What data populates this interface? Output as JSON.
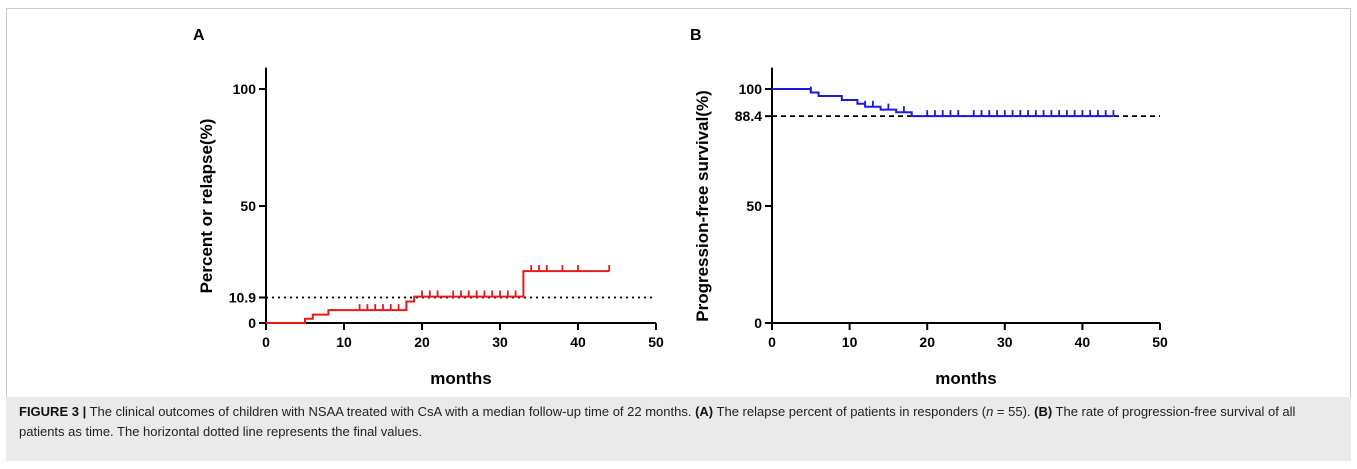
{
  "chart_data": [
    {
      "type": "line",
      "panel_label": "A",
      "xlabel": "months",
      "ylabel": "Percent or relapse(%)",
      "xlim": [
        0,
        50
      ],
      "ylim": [
        0,
        110
      ],
      "x_ticks": [
        0,
        10,
        20,
        30,
        40,
        50
      ],
      "x_tick_labels": [
        "0",
        "10",
        "20",
        "30",
        "40",
        "50"
      ],
      "y_ticks": [
        0,
        10.9,
        50,
        100
      ],
      "y_tick_labels": [
        "0",
        "10.9",
        "50",
        "100"
      ],
      "grid": false,
      "series": [
        {
          "color": "#e8191b",
          "steps": [
            [
              0,
              0
            ],
            [
              5,
              0
            ],
            [
              5,
              1.8
            ],
            [
              6,
              1.8
            ],
            [
              6,
              3.6
            ],
            [
              8,
              3.6
            ],
            [
              8,
              5.5
            ],
            [
              18,
              5.5
            ],
            [
              18,
              9.2
            ],
            [
              19,
              9.2
            ],
            [
              19,
              11.3
            ],
            [
              33,
              11.3
            ],
            [
              33,
              22.2
            ],
            [
              44,
              22.2
            ]
          ],
          "censored_x": [
            12,
            13,
            14,
            15,
            16,
            17,
            20,
            21,
            22,
            24,
            25,
            26,
            27,
            28,
            29,
            30,
            31,
            32,
            34,
            35,
            36,
            38,
            40,
            44
          ]
        }
      ],
      "reference_line": {
        "y": 10.9,
        "style": "dotted",
        "color": "#000000"
      }
    },
    {
      "type": "line",
      "panel_label": "B",
      "xlabel": "months",
      "ylabel": "Progression-free survival(%)",
      "xlim": [
        0,
        50
      ],
      "ylim": [
        0,
        110
      ],
      "x_ticks": [
        0,
        10,
        20,
        30,
        40,
        50
      ],
      "x_tick_labels": [
        "0",
        "10",
        "20",
        "30",
        "40",
        "50"
      ],
      "y_ticks": [
        0,
        50,
        88.4,
        100
      ],
      "y_tick_labels": [
        "0",
        "50",
        "88.4",
        "100"
      ],
      "grid": false,
      "series": [
        {
          "color": "#1a1adf",
          "steps": [
            [
              0,
              100
            ],
            [
              5,
              100
            ],
            [
              5,
              98.5
            ],
            [
              6,
              98.5
            ],
            [
              6,
              97
            ],
            [
              9,
              97
            ],
            [
              9,
              95.3
            ],
            [
              11,
              95.3
            ],
            [
              11,
              93.7
            ],
            [
              12,
              93.7
            ],
            [
              12,
              92.4
            ],
            [
              14,
              92.4
            ],
            [
              14,
              91.2
            ],
            [
              16,
              91.2
            ],
            [
              16,
              90.1
            ],
            [
              18,
              90.1
            ],
            [
              18,
              88.4
            ],
            [
              44,
              88.4
            ]
          ],
          "censored_x": [
            5,
            12,
            13,
            15,
            17,
            20,
            21,
            22,
            23,
            24,
            26,
            27,
            28,
            29,
            30,
            31,
            32,
            33,
            34,
            35,
            36,
            37,
            38,
            39,
            40,
            41,
            42,
            43,
            44
          ]
        }
      ],
      "reference_line": {
        "y": 88.4,
        "style": "dashed",
        "color": "#000000"
      }
    }
  ],
  "caption": {
    "label": "FIGURE 3 |",
    "text1": " The clinical outcomes of children with NSAA treated with CsA with a median follow-up time of 22 months. ",
    "a_label": "(A)",
    "text2": " The relapse percent of patients in responders (",
    "n_var": "n",
    "text3": " = 55). ",
    "b_label": "(B)",
    "text4": " The rate of progression-free survival of all patients as time. The horizontal dotted line represents the final values."
  }
}
